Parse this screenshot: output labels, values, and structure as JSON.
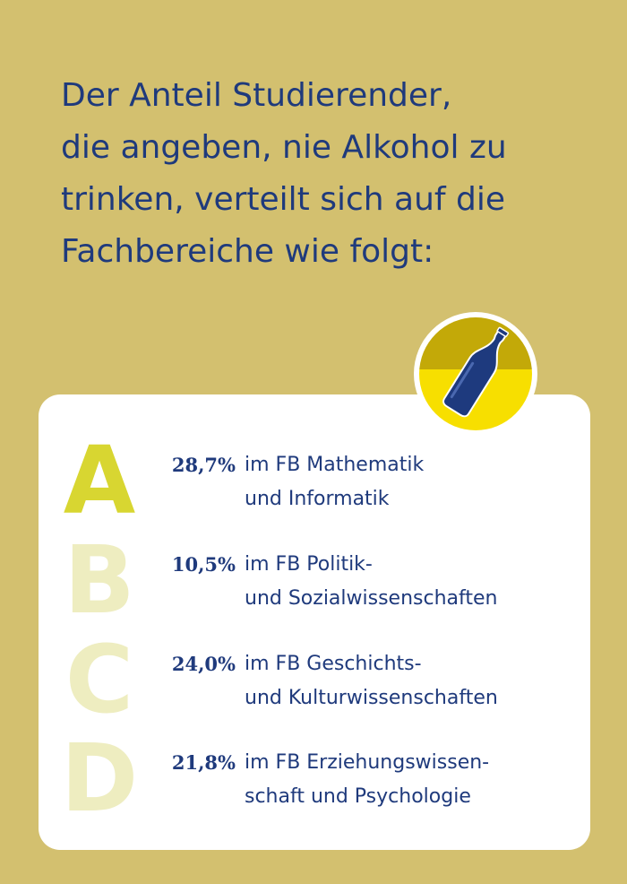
{
  "headline": {
    "lines": [
      "Der Anteil Studierender,",
      "die angeben, nie Alkohol zu",
      "trinken, verteilt sich auf die",
      "Fachbereiche wie folgt:"
    ]
  },
  "badge": {
    "icon": "bottle-icon"
  },
  "items": [
    {
      "letter": "A",
      "percent": "28,7%",
      "line1": "im FB Mathematik",
      "line2": "und Informatik",
      "letter_color": "#d8d631"
    },
    {
      "letter": "B",
      "percent": "10,5%",
      "line1": "im FB Politik-",
      "line2": "und Sozialwissenschaften",
      "letter_color": "#eeedc0"
    },
    {
      "letter": "C",
      "percent": "24,0%",
      "line1": "im FB Geschichts-",
      "line2": "und Kulturwissenschaften",
      "letter_color": "#eeedc0"
    },
    {
      "letter": "D",
      "percent": "21,8%",
      "line1": "im FB Erziehungswissen-",
      "line2": "schaft und Psychologie",
      "letter_color": "#eeedc0"
    }
  ],
  "colors": {
    "background": "#d3c06f",
    "text": "#1f3a7c",
    "card": "#ffffff",
    "badge_top": "#c3a908",
    "badge_bottom": "#f7df00"
  }
}
